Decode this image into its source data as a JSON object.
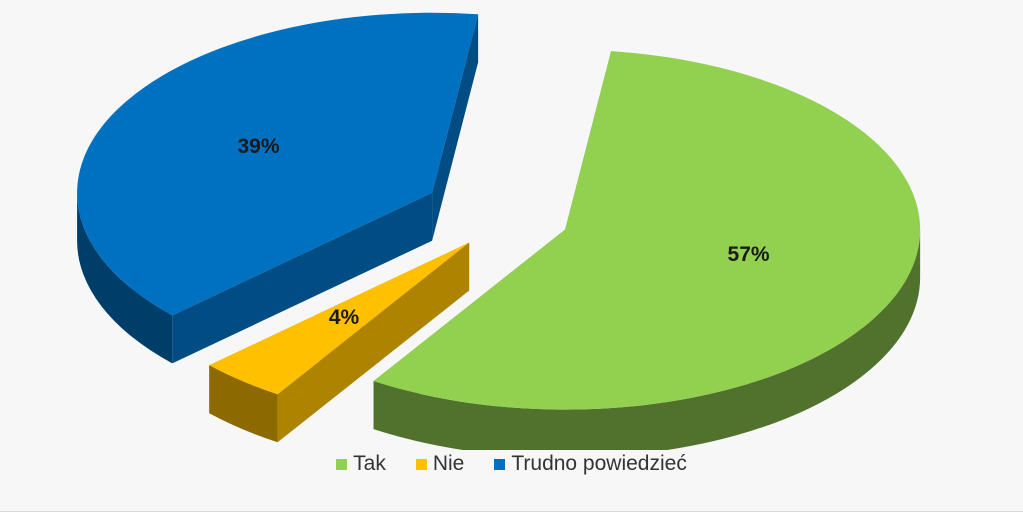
{
  "chart_data": {
    "type": "pie",
    "categories": [
      "Tak",
      "Nie",
      "Trudno powiedzieć"
    ],
    "values": [
      57,
      4,
      39
    ],
    "data_labels": [
      "57%",
      "4%",
      "39%"
    ],
    "colors": [
      "#92d050",
      "#ffc000",
      "#0070c0"
    ],
    "legend_position": "bottom",
    "style": "3d-exploded"
  }
}
